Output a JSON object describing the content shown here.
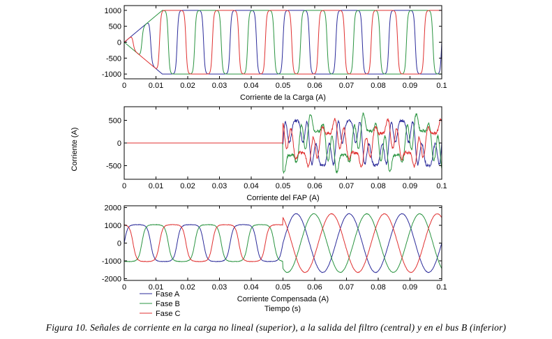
{
  "chart_data": [
    {
      "type": "line",
      "xlabel": "Corriente de la Carga (A)",
      "xlim": [
        0,
        0.1
      ],
      "ylim": [
        -1150,
        1150
      ],
      "xticks": [
        "0",
        "0.01",
        "0.02",
        "0.03",
        "0.04",
        "0.05",
        "0.06",
        "0.07",
        "0.08",
        "0.09",
        "0.1"
      ],
      "yticks": [
        "1000",
        "500",
        "0",
        "-500",
        "-1000"
      ],
      "ytick_values": [
        1000,
        500,
        0,
        -500,
        -1000
      ],
      "series": [
        {
          "color": "#2b2b9a",
          "shape": "square-wave",
          "amplitude": 1000,
          "frequency_hz": 60,
          "phase_deg": 0,
          "ramp_end_s": 0.012,
          "noise": 0,
          "start_s": 0
        },
        {
          "color": "#2a9440",
          "shape": "square-wave",
          "amplitude": 1000,
          "frequency_hz": 60,
          "phase_deg": -120,
          "ramp_end_s": 0.012,
          "noise": 0,
          "start_s": 0
        },
        {
          "color": "#e03030",
          "shape": "square-wave",
          "amplitude": 1000,
          "frequency_hz": 60,
          "phase_deg": 120,
          "ramp_end_s": 0.012,
          "noise": 0,
          "start_s": 0
        }
      ]
    },
    {
      "type": "line",
      "xlabel": "Corriente del FAP (A)",
      "xlim": [
        0,
        0.1
      ],
      "ylim": [
        -800,
        800
      ],
      "xticks": [
        "0",
        "0.01",
        "0.02",
        "0.03",
        "0.04",
        "0.05",
        "0.06",
        "0.07",
        "0.08",
        "0.09",
        "0.1"
      ],
      "yticks": [
        "500",
        "0",
        "-500"
      ],
      "ytick_values": [
        500,
        0,
        -500
      ],
      "series": [
        {
          "color": "#2b2b9a",
          "shape": "filter",
          "amplitude": 550,
          "frequency_hz": 60,
          "phase_deg": 0,
          "start_s": 0.05,
          "noise": 60
        },
        {
          "color": "#2a9440",
          "shape": "filter",
          "amplitude": 550,
          "frequency_hz": 60,
          "phase_deg": -120,
          "start_s": 0.05,
          "noise": 60
        },
        {
          "color": "#e03030",
          "shape": "filter",
          "amplitude": 450,
          "frequency_hz": 60,
          "phase_deg": 120,
          "start_s": 0.05,
          "noise": 60
        }
      ]
    },
    {
      "type": "line",
      "ylabel": "Corriente (A)",
      "xlabel": "Corriente Compensada (A)",
      "xlim": [
        0,
        0.1
      ],
      "ylim": [
        -2100,
        2100
      ],
      "xticks": [
        "0",
        "0.01",
        "0.02",
        "0.03",
        "0.04",
        "0.05",
        "0.06",
        "0.07",
        "0.08",
        "0.09",
        "0.1"
      ],
      "yticks": [
        "2000",
        "1000",
        "0",
        "-1000",
        "-2000"
      ],
      "ytick_values": [
        2000,
        1000,
        0,
        -1000,
        -2000
      ],
      "series": [
        {
          "name": "Fase A",
          "color": "#2b2b9a",
          "shape": "compensated",
          "amplitude": 1050,
          "sine_amplitude": 1650,
          "frequency_hz": 60,
          "phase_deg": 0,
          "start_s": 0.05,
          "noise": 25
        },
        {
          "name": "Fase B",
          "color": "#2a9440",
          "shape": "compensated",
          "amplitude": 1050,
          "sine_amplitude": 1650,
          "frequency_hz": 60,
          "phase_deg": -120,
          "start_s": 0.05,
          "noise": 25
        },
        {
          "name": "Fase C",
          "color": "#e03030",
          "shape": "compensated",
          "amplitude": 1050,
          "sine_amplitude": 1650,
          "frequency_hz": 60,
          "phase_deg": 120,
          "start_s": 0.05,
          "noise": 25
        }
      ]
    }
  ],
  "figure": {
    "ylabel": "Corriente (A)",
    "xlabel": "Tiempo (s)",
    "legend": [
      {
        "label": "Fase A",
        "color": "#2b2b9a"
      },
      {
        "label": "Fase B",
        "color": "#2a9440"
      },
      {
        "label": "Fase C",
        "color": "#e03030"
      }
    ],
    "legend_position": "bottom-left",
    "caption": "Figura 10. Señales de corriente en la carga no lineal (superior), a la salida del filtro (central) y en el bus B (inferior)"
  }
}
